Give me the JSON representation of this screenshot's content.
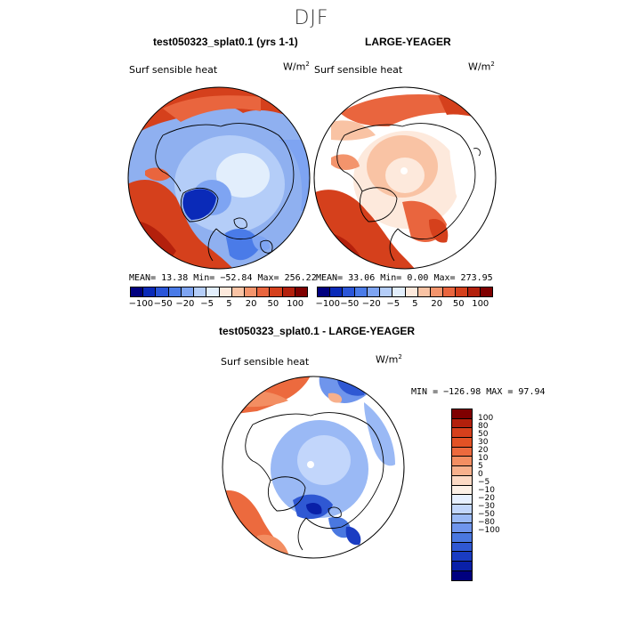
{
  "season": "DJF",
  "panels": [
    {
      "title": "test050323_splat0.1 (yrs 1-1)",
      "variable": "Surf sensible heat",
      "units_base": "W/m",
      "units_exp": "2",
      "stats_text": "MEAN=  13.38  Min= −52.84  Max= 256.22"
    },
    {
      "title": "LARGE-YEAGER",
      "variable": "Surf sensible heat",
      "units_base": "W/m",
      "units_exp": "2",
      "stats_text": "MEAN=  33.06  Min=   0.00  Max= 273.95"
    },
    {
      "title": "test050323_splat0.1 - LARGE-YEAGER",
      "variable": "Surf sensible heat",
      "units_base": "W/m",
      "units_exp": "2",
      "stats_text": "MIN = −126.98 MAX =  97.94"
    }
  ],
  "colorbar_top": {
    "colors": [
      "#00007f",
      "#0a2ab8",
      "#2a55d8",
      "#4a7be8",
      "#7ea4f2",
      "#b4cdf8",
      "#e2eefc",
      "#fde9dc",
      "#f9c3a4",
      "#f3946c",
      "#e9653e",
      "#d5401c",
      "#b3200c",
      "#7f0000"
    ],
    "tick_labels": [
      "−100",
      "−50",
      "−20",
      "−5",
      "5",
      "20",
      "50",
      "100"
    ]
  },
  "colorbar_diff": {
    "colors": [
      "#7f0000",
      "#b3200c",
      "#d5401c",
      "#e25225",
      "#ec6a3e",
      "#f38e62",
      "#f7b08c",
      "#fcd9c4",
      "#fdf0e6",
      "#e6efff",
      "#c2d6fb",
      "#9ab9f5",
      "#6f95ec",
      "#4a78e0",
      "#2f58d3",
      "#1a3cc2",
      "#0920a8",
      "#00007f"
    ],
    "tick_labels": [
      "100",
      "80",
      "50",
      "30",
      "20",
      "10",
      "5",
      "0",
      "−5",
      "−10",
      "−20",
      "−30",
      "−50",
      "−80",
      "−100"
    ]
  }
}
